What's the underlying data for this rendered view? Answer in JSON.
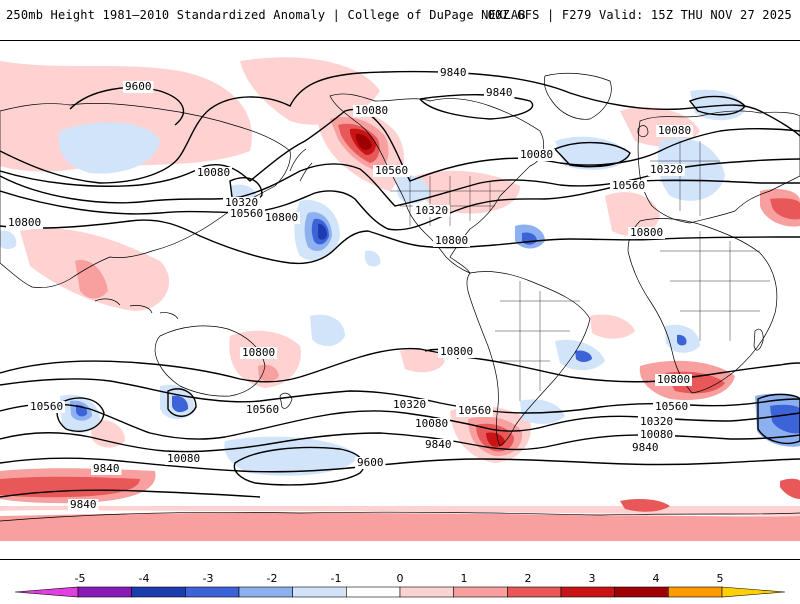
{
  "header": {
    "title": "250mb Height 1981–2010 Standardized Anomaly | College of DuPage NEXLAB",
    "model_info": "00Z GFS | F279 Valid: 15Z THU NOV 27 2025"
  },
  "map": {
    "variable": "250mb geopotential height",
    "contour_labels": [
      "9600",
      "9840",
      "10080",
      "10320",
      "10560",
      "10800"
    ],
    "placed_labels": [
      {
        "text": "9600"
      },
      {
        "text": "9840"
      },
      {
        "text": "9840"
      },
      {
        "text": "10080"
      },
      {
        "text": "10080"
      },
      {
        "text": "10560"
      },
      {
        "text": "10080"
      },
      {
        "text": "10320"
      },
      {
        "text": "10560"
      },
      {
        "text": "10800"
      },
      {
        "text": "10320"
      },
      {
        "text": "10800"
      },
      {
        "text": "10800"
      },
      {
        "text": "10080"
      },
      {
        "text": "10320"
      },
      {
        "text": "10560"
      },
      {
        "text": "10800"
      },
      {
        "text": "10800"
      },
      {
        "text": "10800"
      },
      {
        "text": "10800"
      },
      {
        "text": "10560"
      },
      {
        "text": "10560"
      },
      {
        "text": "10320"
      },
      {
        "text": "10560"
      },
      {
        "text": "10320"
      },
      {
        "text": "10080"
      },
      {
        "text": "10080"
      },
      {
        "text": "9840"
      },
      {
        "text": "9600"
      },
      {
        "text": "9840"
      },
      {
        "text": "9840"
      },
      {
        "text": "10560"
      },
      {
        "text": "10320"
      },
      {
        "text": "10080"
      },
      {
        "text": "9840"
      }
    ]
  },
  "colorbar": {
    "ticks": [
      "-5",
      "-4",
      "-3",
      "-2",
      "-1",
      "0",
      "1",
      "2",
      "3",
      "4",
      "5"
    ],
    "colors": [
      "#e040e0",
      "#8a1ab8",
      "#1c3cb0",
      "#3c64d8",
      "#8cb0f0",
      "#d2e4fa",
      "#ffffff",
      "#ffd2d2",
      "#f8a0a0",
      "#e85858",
      "#c81414",
      "#9c0000",
      "#ff9a00",
      "#ffd000"
    ],
    "anomaly_colors": {
      "weak_positive": "#ffd2d2",
      "moderate_positive": "#f8a0a0",
      "strong_positive": "#e85858",
      "very_strong_positive": "#c81414",
      "extreme_positive": "#9c0000",
      "weak_negative": "#d2e4fa",
      "moderate_negative": "#8cb0f0",
      "strong_negative": "#3c64d8",
      "very_strong_negative": "#1c3cb0"
    }
  }
}
